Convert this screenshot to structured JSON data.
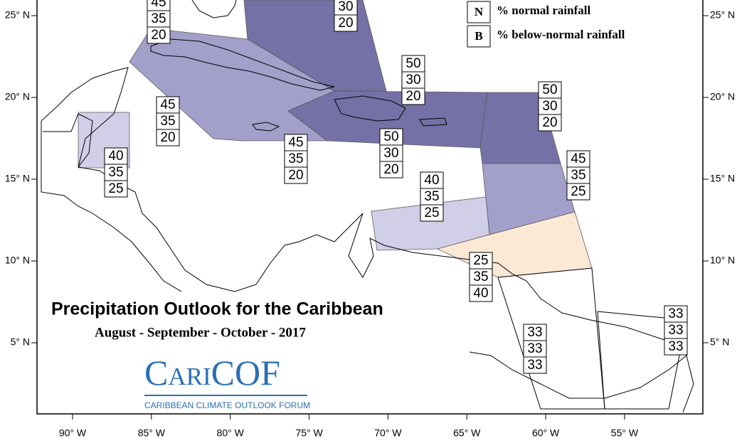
{
  "title": "Precipitation Outlook for the Caribbean",
  "subtitle": "August - September - October - 2017",
  "legend": [
    {
      "key": "N",
      "label": "% normal rainfall"
    },
    {
      "key": "B",
      "label": "% below-normal rainfall"
    }
  ],
  "logo": {
    "name": "CariCOF",
    "caption": "CARIBBEAN CLIMATE OUTLOOK FORUM"
  },
  "lon_ticks": [
    {
      "value": -90,
      "label": "90° W"
    },
    {
      "value": -85,
      "label": "85° W"
    },
    {
      "value": -80,
      "label": "80° W"
    },
    {
      "value": -75,
      "label": "75° W"
    },
    {
      "value": -70,
      "label": "70° W"
    },
    {
      "value": -65,
      "label": "65° W"
    },
    {
      "value": -60,
      "label": "60° W"
    },
    {
      "value": -55,
      "label": "55° W"
    }
  ],
  "lat_ticks": [
    {
      "value": 25,
      "label": "25° N"
    },
    {
      "value": 20,
      "label": "20° N"
    },
    {
      "value": 15,
      "label": "15° N"
    },
    {
      "value": 10,
      "label": "10° N"
    },
    {
      "value": 5,
      "label": "5° N"
    }
  ],
  "zones": [
    {
      "values": [
        45,
        35,
        20
      ],
      "color": "#9e9ac8"
    },
    {
      "values": [
        30,
        20
      ],
      "color": "#6e6aa3"
    },
    {
      "values": [
        50,
        30,
        20
      ],
      "color": "#6e6aa3"
    },
    {
      "values": [
        45,
        35,
        20
      ],
      "color": "#9e9ac8"
    },
    {
      "values": [
        45,
        35,
        20
      ],
      "color": "#9e9ac8"
    },
    {
      "values": [
        50,
        30,
        20
      ],
      "color": "#6e6aa3"
    },
    {
      "values": [
        50,
        30,
        20
      ],
      "color": "#6e6aa3"
    },
    {
      "values": [
        40,
        35,
        25
      ],
      "color": "#cfcde6"
    },
    {
      "values": [
        45,
        35,
        25
      ],
      "color": "#9e9ac8"
    },
    {
      "values": [
        40,
        35,
        25
      ],
      "color": "#cfcde6"
    },
    {
      "values": [
        25,
        35,
        40
      ],
      "color": "#fbe8d3"
    },
    {
      "values": [
        33,
        33,
        33
      ],
      "color": "none"
    },
    {
      "values": [
        33,
        33,
        33
      ],
      "color": "none"
    }
  ]
}
